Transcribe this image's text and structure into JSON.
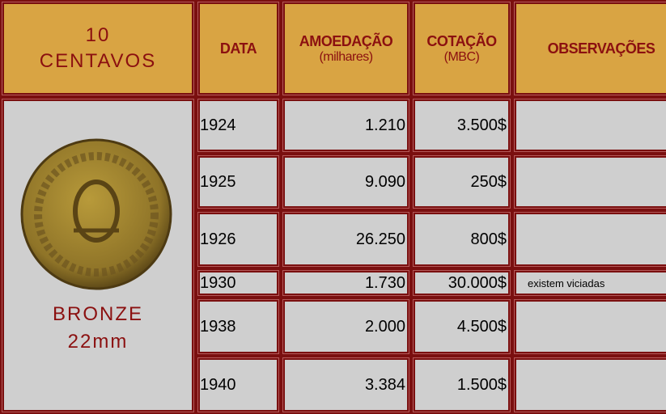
{
  "coin": {
    "title": [
      "10",
      "CENTAVOS"
    ],
    "material": "BRONZE",
    "size": "22mm"
  },
  "columns": [
    {
      "name": "DATA"
    },
    {
      "name": "AMOEDAÇÃO",
      "unit": "(milhares)"
    },
    {
      "name": "COTAÇÃO",
      "unit": "(MBC)"
    },
    {
      "name": "OBSERVAÇÕES"
    }
  ],
  "rows": [
    {
      "data": "1924",
      "amoedacao": "1.210",
      "cotacao": "3.500$"
    },
    {
      "data": "1925",
      "amoedacao": "9.090",
      "cotacao": "250$"
    },
    {
      "data": "1926",
      "amoedacao": "26.250",
      "cotacao": "800$"
    },
    {
      "data": "1930",
      "amoedacao": "1.730",
      "cotacao": "30.000$",
      "observacoes": "existem viciadas"
    },
    {
      "data": "1938",
      "amoedacao": "2.000",
      "cotacao": "4.500$"
    },
    {
      "data": "1940",
      "amoedacao": "3.384",
      "cotacao": "1.500$"
    }
  ]
}
